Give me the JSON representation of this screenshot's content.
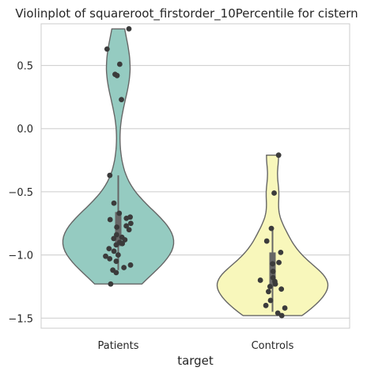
{
  "chart_data": {
    "type": "violin",
    "title": "Violinplot of squareroot_firstorder_10Percentile for cistern",
    "xlabel": "target",
    "ylabel": "",
    "ylim": [
      -1.58,
      0.83
    ],
    "yticks": [
      0.5,
      0.0,
      -0.5,
      -1.0,
      -1.5
    ],
    "ytick_labels": [
      "0.5",
      "0.0",
      "−0.5",
      "−1.0",
      "−1.5"
    ],
    "grid": "horizontal",
    "categories": [
      "Patients",
      "Controls"
    ],
    "colors": [
      "#95cbc1",
      "#f8f7bb"
    ],
    "series": [
      {
        "category": "Patients",
        "min": -1.23,
        "max": 0.79,
        "q1": -0.93,
        "median": -0.82,
        "q3": -0.66,
        "whisker_low": -1.12,
        "whisker_high": -0.37,
        "points": [
          0.79,
          0.63,
          0.51,
          0.43,
          0.42,
          0.23,
          -0.37,
          -0.59,
          -0.67,
          -0.7,
          -0.71,
          -0.72,
          -0.75,
          -0.77,
          -0.78,
          -0.8,
          -0.84,
          -0.86,
          -0.87,
          -0.88,
          -0.9,
          -0.91,
          -0.92,
          -0.95,
          -0.97,
          -1.0,
          -1.01,
          -1.03,
          -1.05,
          -1.08,
          -1.1,
          -1.12,
          -1.14,
          -1.23
        ]
      },
      {
        "category": "Controls",
        "min": -1.48,
        "max": -0.21,
        "q1": -1.25,
        "median": -1.19,
        "q3": -0.98,
        "whisker_low": -1.45,
        "whisker_high": -0.79,
        "points": [
          -0.21,
          -0.51,
          -0.79,
          -0.89,
          -0.98,
          -1.06,
          -1.07,
          -1.13,
          -1.18,
          -1.2,
          -1.21,
          -1.23,
          -1.25,
          -1.27,
          -1.29,
          -1.36,
          -1.4,
          -1.42,
          -1.46,
          -1.48
        ]
      }
    ]
  }
}
